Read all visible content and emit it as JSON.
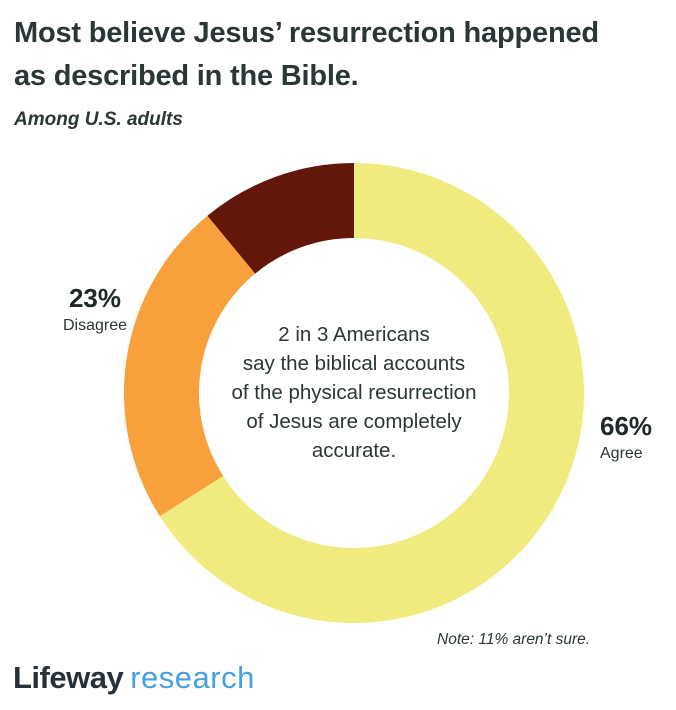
{
  "page": {
    "title_lines": [
      "Most believe Jesus’ resurrection happened",
      "as described in the Bible."
    ],
    "subtitle": "Among U.S. adults"
  },
  "chart_data": {
    "type": "pie",
    "subtype": "donut",
    "title": "Most believe Jesus’ resurrection happened as described in the Bible.",
    "subtitle": "Among U.S. adults",
    "segments": [
      {
        "label": "Agree",
        "value": 66,
        "color": "#F0EB7F"
      },
      {
        "label": "Disagree",
        "value": 23,
        "color": "#F7A03C"
      },
      {
        "label": "Aren't sure",
        "value": 11,
        "color": "#63170A"
      }
    ],
    "start_angle_deg": 0,
    "direction": "clockwise",
    "legend_position": "outside-callouts",
    "center_text_lines": [
      "2 in 3 Americans",
      "say the biblical accounts",
      "of the physical resurrection",
      "of Jesus are completely",
      "accurate."
    ],
    "note": "Note: 11% aren’t sure."
  },
  "callouts": {
    "disagree": {
      "pct": "23%",
      "label": "Disagree"
    },
    "agree": {
      "pct": "66%",
      "label": "Agree"
    }
  },
  "note": "Note: 11% aren’t sure.",
  "logo": {
    "primary": "Lifeway",
    "secondary": "research"
  },
  "colors": {
    "text": "#2B3636",
    "percent_text": "#20282A",
    "agree_yellow": "#F0EB7F",
    "disagree_orange": "#F7A03C",
    "not_sure_brown": "#63170A",
    "logo_primary": "#273039",
    "logo_secondary": "#45A0E0",
    "background": "#FFFFFF"
  }
}
